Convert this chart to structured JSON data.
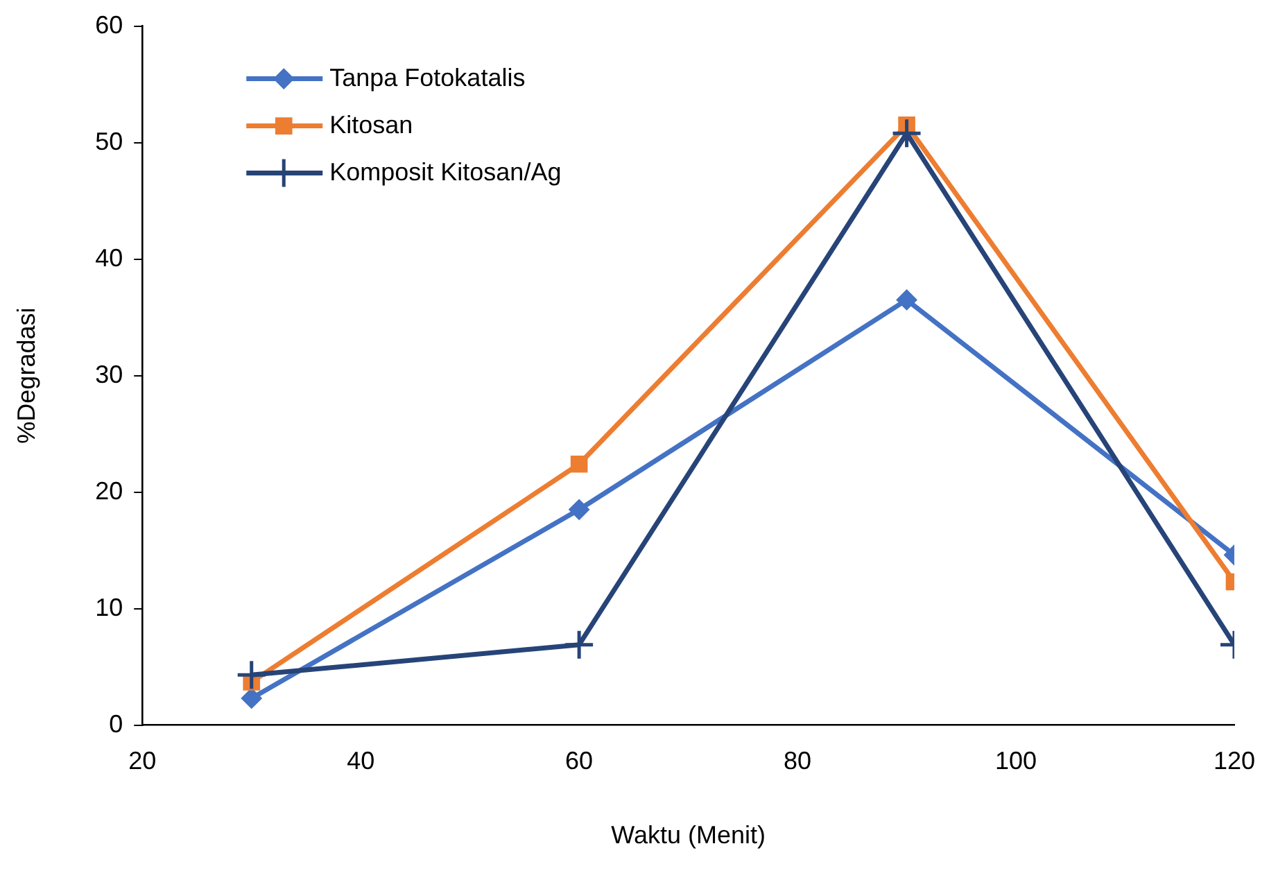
{
  "chart_data": {
    "type": "line",
    "xlabel": "Waktu (Menit)",
    "ylabel": "%Degradasi",
    "x": [
      30,
      60,
      90,
      120
    ],
    "series": [
      {
        "name": "Tanpa Fotokatalis",
        "color": "#4472c4",
        "marker": "diamond",
        "values": [
          2.3,
          18.5,
          36.5,
          14.6
        ]
      },
      {
        "name": "Kitosan",
        "color": "#ed7d31",
        "marker": "square",
        "values": [
          3.7,
          22.4,
          51.5,
          12.3
        ]
      },
      {
        "name": "Komposit Kitosan/Ag",
        "color": "#264478",
        "marker": "cross",
        "values": [
          4.3,
          6.9,
          50.8,
          6.9
        ]
      }
    ],
    "xlim": [
      20,
      120
    ],
    "xticks": [
      20,
      40,
      60,
      80,
      100,
      120
    ],
    "ylim": [
      0,
      60
    ],
    "yticks": [
      0,
      10,
      20,
      30,
      40,
      50,
      60
    ],
    "grid": false,
    "legend": "top left",
    "line_style": "solid"
  }
}
